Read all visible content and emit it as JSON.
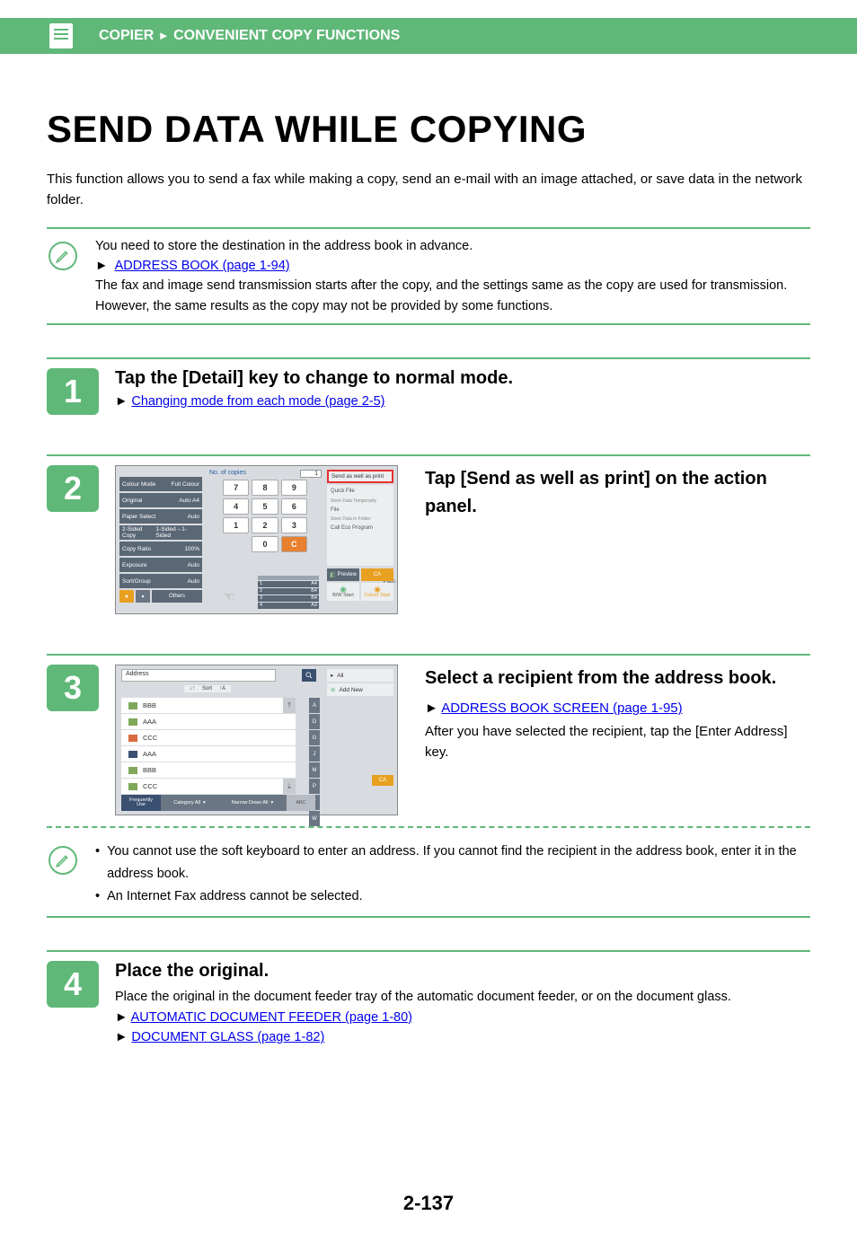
{
  "header": {
    "section": "COPIER",
    "subsection": "CONVENIENT COPY FUNCTIONS"
  },
  "title": "SEND DATA WHILE COPYING",
  "intro": "This function allows you to send a fax while making a copy, send an e-mail with an image attached, or save data in the network folder.",
  "note1": {
    "line1": "You need to store the destination in the address book in advance.",
    "link1": "ADDRESS BOOK (page 1-94)",
    "line2": "The fax and image send transmission starts after the copy, and the settings same as the copy are used for transmission. However, the same results as the copy may not be provided by some functions."
  },
  "step1": {
    "num": "1",
    "title": "Tap the [Detail] key to change to normal mode.",
    "link": "Changing mode from each mode (page 2-5)"
  },
  "step2": {
    "num": "2",
    "title": "Tap [Send as well as print] on the action panel.",
    "shot": {
      "copies_label": "No. of copies",
      "copies_val": "1",
      "left_rows": [
        {
          "l": "Colour Mode",
          "r": "Full Colour"
        },
        {
          "l": "Original",
          "r": "Auto  A4"
        },
        {
          "l": "Paper Select",
          "r": "Auto"
        },
        {
          "l": "2-Sided Copy",
          "r": "1-Sided→1-Sided"
        },
        {
          "l": "Copy Ratio",
          "r": "100%"
        },
        {
          "l": "Exposure",
          "r": "Auto"
        },
        {
          "l": "Sort/Group",
          "r": "Auto"
        }
      ],
      "others": "Others",
      "keys": [
        "7",
        "8",
        "9",
        "4",
        "5",
        "6",
        "1",
        "2",
        "3",
        "",
        "0",
        ""
      ],
      "clear": "C",
      "plain": "Plain",
      "trays": [
        {
          "l": "1",
          "r": "A4"
        },
        {
          "l": "2",
          "r": "B4"
        },
        {
          "l": "3",
          "r": "B4"
        },
        {
          "l": "4",
          "r": "A3"
        }
      ],
      "action_hi": "Send as well as print",
      "menu1": "Quick File",
      "menu1s": "Store Data Temporarily",
      "menu2": "File",
      "menu2s": "Store Data in Folder",
      "menu3": "Call Eco Program",
      "preview": "Preview",
      "ca": "CA",
      "bw": "B/W Start",
      "colour": "Colour Start"
    }
  },
  "step3": {
    "num": "3",
    "title": "Select a recipient from the address book.",
    "link": "ADDRESS BOOK SCREEN (page 1-95)",
    "text": "After you have selected the recipient, tap the [Enter Address] key.",
    "shot": {
      "address": "Address",
      "sort": "Sort",
      "items": [
        {
          "icon": "#7fa85a",
          "label": "BBB"
        },
        {
          "icon": "#7fa85a",
          "label": "AAA"
        },
        {
          "icon": "#d86a40",
          "label": "CCC"
        },
        {
          "icon": "#3a5070",
          "label": "AAA"
        },
        {
          "icon": "#7fa85a",
          "label": "BBB"
        },
        {
          "icon": "#7fa85a",
          "label": "CCC"
        }
      ],
      "alpha": [
        "A",
        "D",
        "G",
        "J",
        "M",
        "P",
        "T",
        "W"
      ],
      "tabs": {
        "t1": [
          "Frequently",
          "Use"
        ],
        "t2": "Category All",
        "t3": "Narrow Down All",
        "t4": "ABC"
      },
      "right_all": "All",
      "right_add": "Add New",
      "ca": "CA"
    }
  },
  "note2": {
    "b1": "You cannot use the soft keyboard to enter an address. If you cannot find the recipient in the address book, enter it in the address book.",
    "b2": "An Internet Fax address cannot be selected."
  },
  "step4": {
    "num": "4",
    "title": "Place the original.",
    "text": "Place the original in the document feeder tray of the automatic document feeder, or on the document glass.",
    "link1": "AUTOMATIC DOCUMENT FEEDER (page 1-80)",
    "link2": "DOCUMENT GLASS (page 1-82)"
  },
  "page_num": "2-137"
}
